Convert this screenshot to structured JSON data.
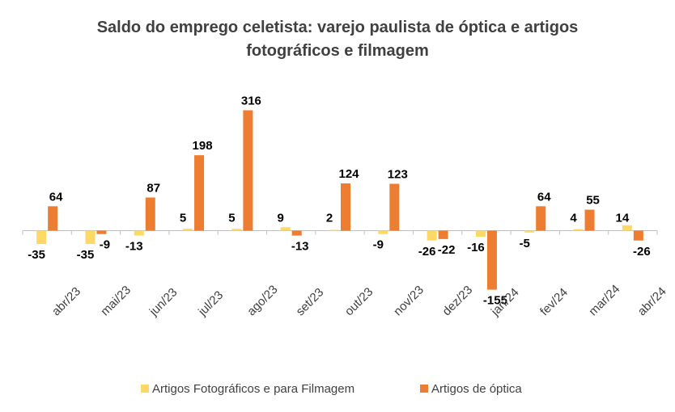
{
  "chart_data": {
    "type": "bar",
    "title_lines": [
      "Saldo do emprego celetista: varejo paulista de óptica e artigos",
      "fotográficos e filmagem"
    ],
    "categories": [
      "abr/23",
      "mai/23",
      "jun/23",
      "jul/23",
      "ago/23",
      "set/23",
      "out/23",
      "nov/23",
      "dez/23",
      "jan/24",
      "fev/24",
      "mar/24",
      "abr/24"
    ],
    "series": [
      {
        "name": "Artigos Fotográficos e para Filmagem",
        "color": "#FFD966",
        "values": [
          -35,
          -35,
          -13,
          5,
          5,
          9,
          2,
          -9,
          -26,
          -16,
          -5,
          4,
          14
        ]
      },
      {
        "name": "Artigos de óptica",
        "color": "#ED7D31",
        "values": [
          64,
          -9,
          87,
          198,
          316,
          -13,
          124,
          123,
          -22,
          -155,
          64,
          55,
          -26
        ]
      }
    ],
    "ylim": [
      -160,
      330
    ],
    "grid": false,
    "legend_position": "bottom"
  }
}
